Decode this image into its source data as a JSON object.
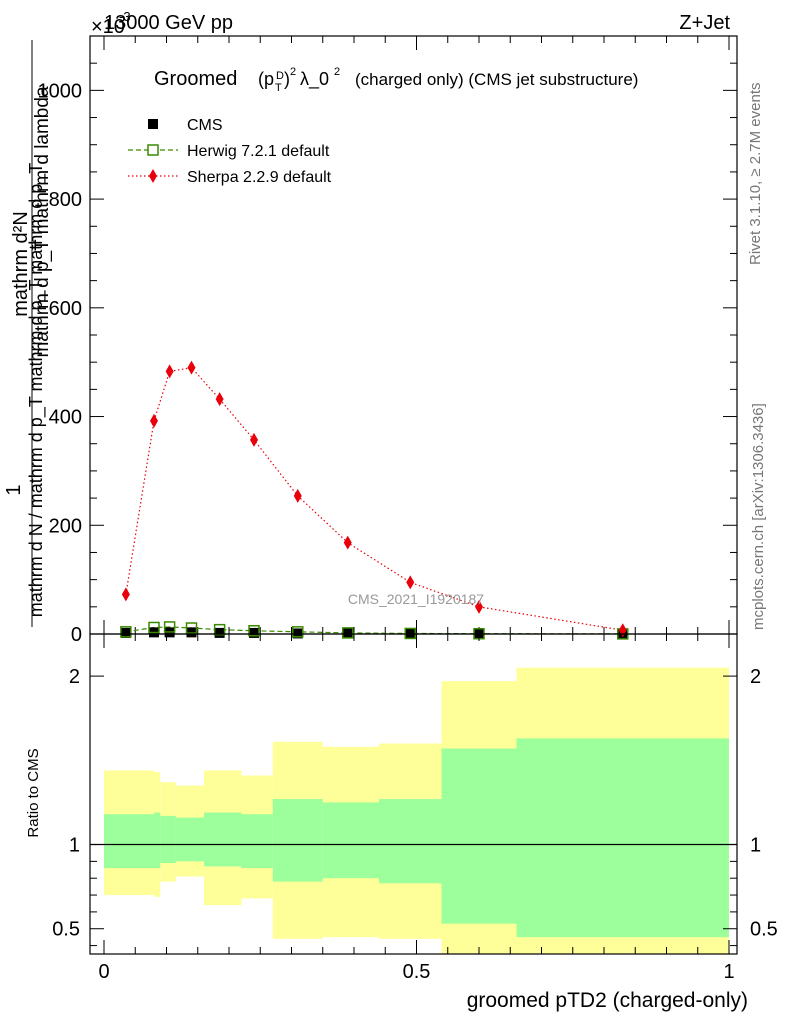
{
  "header": {
    "left": "13000 GeV pp",
    "right": "Z+Jet",
    "exponent": "×10",
    "exponent_power": "-3"
  },
  "side_labels": {
    "rivet": "Rivet 3.1.10, ≥ 2.7M events",
    "mcplots": "mcplots.cern.ch [arXiv:1306.3436]"
  },
  "watermark": "CMS_2021_I1920187",
  "chart_data": [
    {
      "type": "line",
      "title_main": "Groomed",
      "title_formula": "(p_T^D)^2 λ_0^2",
      "title_tail": "(charged only) (CMS jet substructure)",
      "ylabel_numerator": "mathrm d²N",
      "ylabel_den_top": "mathrm d p_T mathrm d lambda",
      "ylabel_frac_one": "1",
      "ylabel_den_bottom": "mathrm d N / mathrm d p_T mathrm d p_T mathrm d p_T",
      "xlim": [
        0,
        1
      ],
      "ylim": [
        0,
        1100
      ],
      "y_ticks": [
        0,
        200,
        400,
        600,
        800,
        1000
      ],
      "y_tick_labels": [
        "0",
        "200",
        "400",
        "600",
        "800",
        "1000"
      ],
      "series": [
        {
          "name": "CMS",
          "color": "#000000",
          "marker": "square-filled",
          "x": [
            0.035,
            0.08,
            0.105,
            0.14,
            0.185,
            0.24,
            0.31,
            0.39,
            0.49,
            0.6,
            0.83
          ],
          "y": [
            2,
            3,
            3,
            3,
            2,
            2,
            1,
            1,
            1,
            0.5,
            0.2
          ]
        },
        {
          "name": "Herwig 7.2.1 default",
          "color": "#3a8a00",
          "marker": "square-open",
          "line": "dashed",
          "x": [
            0.035,
            0.08,
            0.105,
            0.14,
            0.185,
            0.24,
            0.31,
            0.39,
            0.49,
            0.6,
            0.83
          ],
          "y": [
            4,
            12,
            13,
            11,
            8,
            6,
            4,
            2,
            1,
            0.5,
            0.2
          ]
        },
        {
          "name": "Sherpa 2.2.9 default",
          "color": "#e8000b",
          "marker": "diamond-filled",
          "line": "dotted",
          "x": [
            0.035,
            0.08,
            0.105,
            0.14,
            0.185,
            0.24,
            0.31,
            0.39,
            0.49,
            0.6,
            0.83
          ],
          "y": [
            73,
            392,
            483,
            490,
            432,
            357,
            254,
            168,
            95,
            50,
            7
          ]
        }
      ]
    },
    {
      "type": "area",
      "ylabel": "Ratio to CMS",
      "xlabel": "groomed pTD2 (charged-only)",
      "xlim": [
        0,
        1
      ],
      "ylim": [
        0.35,
        2.25
      ],
      "x_ticks": [
        0,
        0.5,
        1
      ],
      "x_tick_labels": [
        "0",
        "0.5",
        "1"
      ],
      "y_ticks": [
        0.5,
        1,
        2
      ],
      "y_tick_labels": [
        "0.5",
        "1",
        "2"
      ],
      "reference_line": 1,
      "bins": [
        0,
        0.08,
        0.09,
        0.115,
        0.16,
        0.22,
        0.27,
        0.35,
        0.44,
        0.54,
        0.66,
        1.0
      ],
      "band_inner": {
        "color": "#9cff9c",
        "lo": [
          0.86,
          0.86,
          0.89,
          0.9,
          0.87,
          0.86,
          0.78,
          0.8,
          0.77,
          0.53,
          0.45
        ],
        "hi": [
          1.18,
          1.19,
          1.17,
          1.16,
          1.19,
          1.18,
          1.27,
          1.25,
          1.27,
          1.57,
          1.63
        ]
      },
      "band_outer": {
        "color": "#ffff99",
        "lo": [
          0.7,
          0.69,
          0.78,
          0.81,
          0.64,
          0.68,
          0.44,
          0.45,
          0.44,
          0.32,
          0.32
        ],
        "hi": [
          1.44,
          1.43,
          1.37,
          1.35,
          1.44,
          1.41,
          1.61,
          1.58,
          1.6,
          1.97,
          2.05
        ]
      }
    }
  ]
}
